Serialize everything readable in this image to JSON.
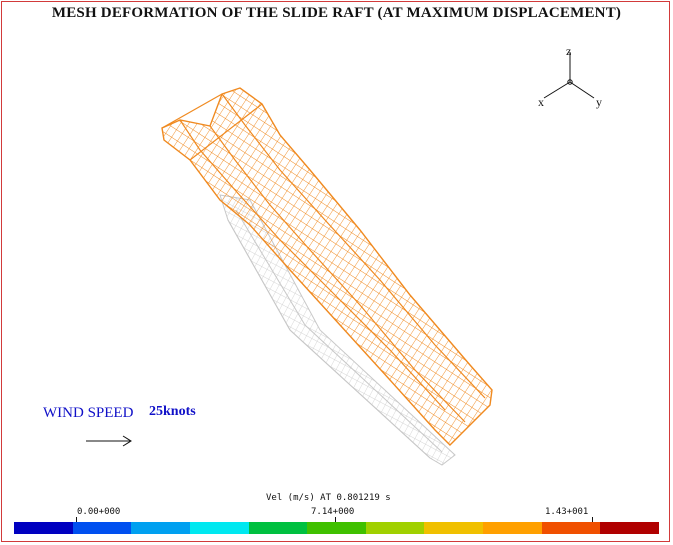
{
  "title": "MESH DEFORMATION OF THE SLIDE RAFT (AT MAXIMUM DISPLACEMENT)",
  "axes": {
    "z": "z",
    "x": "x",
    "y": "y"
  },
  "wind": {
    "label": "WIND SPEED",
    "speed": "25knots"
  },
  "legend": {
    "caption": "Vel (m/s) AT 0.801219 s",
    "ticks": [
      "0.00+000",
      "7.14+000",
      "1.43+001"
    ],
    "colors": [
      "#0000c0",
      "#0050f0",
      "#00a0f0",
      "#00e8f0",
      "#00c040",
      "#40c000",
      "#a0d000",
      "#f0c000",
      "#ffa000",
      "#f05000",
      "#b00000"
    ]
  },
  "mesh": {
    "deformed_color": "#f08a20",
    "original_color": "#c8c8c8"
  }
}
